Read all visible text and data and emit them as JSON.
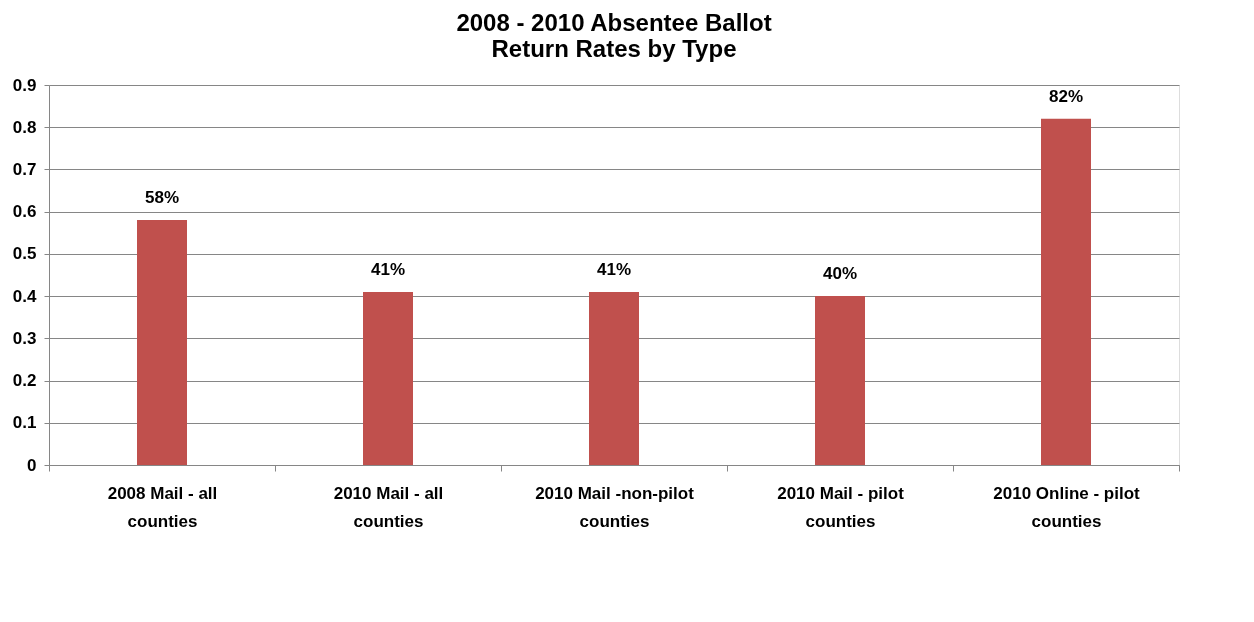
{
  "chart_data": {
    "type": "bar",
    "title": [
      "2008 - 2010 Absentee Ballot",
      "Return Rates by Type"
    ],
    "categories": [
      "2008 Mail - all counties",
      "2010 Mail - all counties",
      "2010 Mail -non-pilot counties",
      "2010 Mail - pilot counties",
      "2010 Online - pilot counties"
    ],
    "values": [
      0.58,
      0.41,
      0.41,
      0.4,
      0.82
    ],
    "value_labels": [
      "58%",
      "41%",
      "41%",
      "40%",
      "82%"
    ],
    "color": "#c0504d",
    "ylim": [
      0,
      0.9
    ],
    "yticks": [
      0,
      0.1,
      0.2,
      0.3,
      0.4,
      0.5,
      0.6,
      0.7,
      0.8,
      0.9
    ],
    "grid": "y"
  }
}
